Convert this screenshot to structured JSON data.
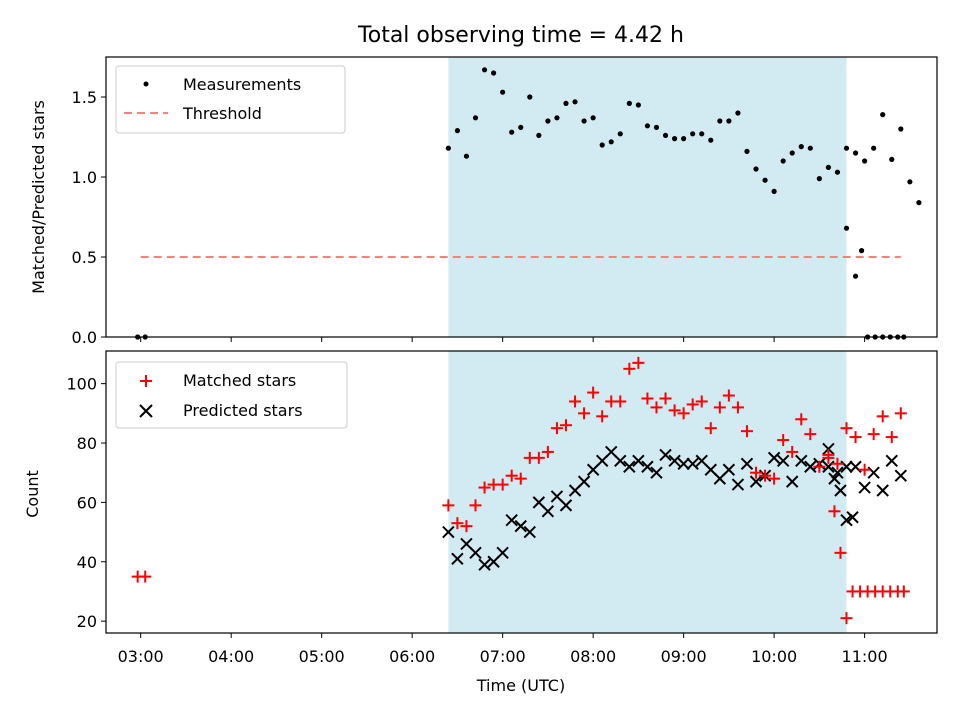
{
  "title": "Total observing time = 4.42 h",
  "top": {
    "ylabel": "Matched/Predicted stars",
    "ylim": [
      0,
      1.75
    ],
    "yticks": [
      "0.0",
      "0.5",
      "1.0",
      "1.5"
    ],
    "legend": {
      "measurements": "Measurements",
      "threshold": "Threshold"
    }
  },
  "bottom": {
    "ylabel": "Count",
    "ylim": [
      16,
      111
    ],
    "yticks": [
      "20",
      "40",
      "60",
      "80",
      "100"
    ],
    "legend": {
      "matched": "Matched stars",
      "predicted": "Predicted stars"
    }
  },
  "xlabel": "Time (UTC)",
  "xticks": [
    "03:00",
    "04:00",
    "05:00",
    "06:00",
    "07:00",
    "08:00",
    "09:00",
    "10:00",
    "11:00"
  ],
  "colors": {
    "shade": "#add8e6",
    "threshold": "#ff7f7f",
    "matched": "#ff0000",
    "predicted": "#000000"
  },
  "chart_data": [
    {
      "type": "scatter",
      "title": "Total observing time = 4.42 h",
      "ylabel": "Matched/Predicted stars",
      "xlim": [
        "02:37",
        "11:48"
      ],
      "ylim": [
        0,
        1.75
      ],
      "shaded_span": [
        "06:24",
        "10:48"
      ],
      "threshold": {
        "name": "Threshold",
        "y": 0.5,
        "x": [
          "03:00",
          "11:24"
        ]
      },
      "series": [
        {
          "name": "Measurements",
          "points": [
            [
              "02:58",
              0.0
            ],
            [
              "03:03",
              0.0
            ],
            [
              "06:24",
              1.18
            ],
            [
              "06:30",
              1.29
            ],
            [
              "06:36",
              1.13
            ],
            [
              "06:42",
              1.37
            ],
            [
              "06:48",
              1.67
            ],
            [
              "06:54",
              1.65
            ],
            [
              "07:00",
              1.53
            ],
            [
              "07:06",
              1.28
            ],
            [
              "07:12",
              1.31
            ],
            [
              "07:18",
              1.5
            ],
            [
              "07:24",
              1.26
            ],
            [
              "07:30",
              1.35
            ],
            [
              "07:36",
              1.37
            ],
            [
              "07:42",
              1.46
            ],
            [
              "07:48",
              1.47
            ],
            [
              "07:54",
              1.35
            ],
            [
              "08:00",
              1.37
            ],
            [
              "08:06",
              1.2
            ],
            [
              "08:12",
              1.22
            ],
            [
              "08:18",
              1.27
            ],
            [
              "08:24",
              1.46
            ],
            [
              "08:30",
              1.45
            ],
            [
              "08:36",
              1.32
            ],
            [
              "08:42",
              1.31
            ],
            [
              "08:48",
              1.26
            ],
            [
              "08:54",
              1.24
            ],
            [
              "09:00",
              1.24
            ],
            [
              "09:06",
              1.27
            ],
            [
              "09:12",
              1.27
            ],
            [
              "09:18",
              1.23
            ],
            [
              "09:24",
              1.35
            ],
            [
              "09:30",
              1.35
            ],
            [
              "09:36",
              1.4
            ],
            [
              "09:42",
              1.16
            ],
            [
              "09:48",
              1.05
            ],
            [
              "09:54",
              0.98
            ],
            [
              "10:00",
              0.91
            ],
            [
              "10:06",
              1.1
            ],
            [
              "10:12",
              1.15
            ],
            [
              "10:18",
              1.19
            ],
            [
              "10:24",
              1.18
            ],
            [
              "10:30",
              0.99
            ],
            [
              "10:36",
              1.06
            ],
            [
              "10:42",
              1.03
            ],
            [
              "10:48",
              1.18
            ],
            [
              "10:54",
              1.15
            ],
            [
              "11:00",
              1.1
            ],
            [
              "11:06",
              1.18
            ],
            [
              "11:12",
              1.39
            ],
            [
              "11:18",
              1.11
            ],
            [
              "11:24",
              1.3
            ],
            [
              "11:30",
              0.97
            ],
            [
              "11:36",
              0.84
            ],
            [
              "10:48",
              0.68
            ],
            [
              "10:54",
              0.38
            ],
            [
              "10:58",
              0.54
            ],
            [
              "11:02",
              0.0
            ],
            [
              "11:07",
              0.0
            ],
            [
              "11:12",
              0.0
            ],
            [
              "11:17",
              0.0
            ],
            [
              "11:22",
              0.0
            ],
            [
              "11:26",
              0.0
            ]
          ]
        }
      ]
    },
    {
      "type": "scatter",
      "xlabel": "Time (UTC)",
      "ylabel": "Count",
      "xlim": [
        "02:37",
        "11:48"
      ],
      "ylim": [
        16,
        111
      ],
      "shaded_span": [
        "06:24",
        "10:48"
      ],
      "series": [
        {
          "name": "Matched stars",
          "marker": "plus",
          "points": [
            [
              "02:58",
              35
            ],
            [
              "03:03",
              35
            ],
            [
              "06:24",
              59
            ],
            [
              "06:30",
              53
            ],
            [
              "06:36",
              52
            ],
            [
              "06:42",
              59
            ],
            [
              "06:48",
              65
            ],
            [
              "06:54",
              66
            ],
            [
              "07:00",
              66
            ],
            [
              "07:06",
              69
            ],
            [
              "07:12",
              68
            ],
            [
              "07:18",
              75
            ],
            [
              "07:24",
              75
            ],
            [
              "07:30",
              77
            ],
            [
              "07:36",
              85
            ],
            [
              "07:42",
              86
            ],
            [
              "07:48",
              94
            ],
            [
              "07:54",
              90
            ],
            [
              "08:00",
              97
            ],
            [
              "08:06",
              89
            ],
            [
              "08:12",
              94
            ],
            [
              "08:18",
              94
            ],
            [
              "08:24",
              105
            ],
            [
              "08:30",
              107
            ],
            [
              "08:36",
              95
            ],
            [
              "08:42",
              92
            ],
            [
              "08:48",
              95
            ],
            [
              "08:54",
              91
            ],
            [
              "09:00",
              90
            ],
            [
              "09:06",
              93
            ],
            [
              "09:12",
              94
            ],
            [
              "09:18",
              85
            ],
            [
              "09:24",
              92
            ],
            [
              "09:30",
              96
            ],
            [
              "09:36",
              92
            ],
            [
              "09:42",
              84
            ],
            [
              "09:48",
              70
            ],
            [
              "09:54",
              69
            ],
            [
              "10:00",
              68
            ],
            [
              "10:06",
              81
            ],
            [
              "10:12",
              77
            ],
            [
              "10:18",
              88
            ],
            [
              "10:24",
              83
            ],
            [
              "10:30",
              72
            ],
            [
              "10:36",
              75
            ],
            [
              "10:42",
              73
            ],
            [
              "10:48",
              85
            ],
            [
              "10:54",
              82
            ],
            [
              "11:00",
              71
            ],
            [
              "11:06",
              83
            ],
            [
              "11:12",
              89
            ],
            [
              "11:18",
              82
            ],
            [
              "11:24",
              90
            ],
            [
              "10:36",
              76
            ],
            [
              "10:40",
              57
            ],
            [
              "10:44",
              43
            ],
            [
              "10:48",
              21
            ],
            [
              "10:52",
              30
            ],
            [
              "10:57",
              30
            ],
            [
              "11:02",
              30
            ],
            [
              "11:07",
              30
            ],
            [
              "11:12",
              30
            ],
            [
              "11:17",
              30
            ],
            [
              "11:22",
              30
            ],
            [
              "11:26",
              30
            ]
          ]
        },
        {
          "name": "Predicted stars",
          "marker": "x",
          "points": [
            [
              "06:24",
              50
            ],
            [
              "06:30",
              41
            ],
            [
              "06:36",
              46
            ],
            [
              "06:42",
              43
            ],
            [
              "06:48",
              39
            ],
            [
              "06:54",
              40
            ],
            [
              "07:00",
              43
            ],
            [
              "07:06",
              54
            ],
            [
              "07:12",
              52
            ],
            [
              "07:18",
              50
            ],
            [
              "07:24",
              60
            ],
            [
              "07:30",
              57
            ],
            [
              "07:36",
              62
            ],
            [
              "07:42",
              59
            ],
            [
              "07:48",
              64
            ],
            [
              "07:54",
              67
            ],
            [
              "08:00",
              71
            ],
            [
              "08:06",
              74
            ],
            [
              "08:12",
              77
            ],
            [
              "08:18",
              74
            ],
            [
              "08:24",
              72
            ],
            [
              "08:30",
              74
            ],
            [
              "08:36",
              72
            ],
            [
              "08:42",
              70
            ],
            [
              "08:48",
              76
            ],
            [
              "08:54",
              74
            ],
            [
              "09:00",
              73
            ],
            [
              "09:06",
              73
            ],
            [
              "09:12",
              74
            ],
            [
              "09:18",
              71
            ],
            [
              "09:24",
              68
            ],
            [
              "09:30",
              71
            ],
            [
              "09:36",
              66
            ],
            [
              "09:42",
              73
            ],
            [
              "09:48",
              67
            ],
            [
              "09:54",
              69
            ],
            [
              "10:00",
              75
            ],
            [
              "10:06",
              74
            ],
            [
              "10:12",
              67
            ],
            [
              "10:18",
              74
            ],
            [
              "10:24",
              72
            ],
            [
              "10:30",
              73
            ],
            [
              "10:36",
              72
            ],
            [
              "10:42",
              70
            ],
            [
              "10:48",
              72
            ],
            [
              "10:54",
              72
            ],
            [
              "11:00",
              65
            ],
            [
              "11:06",
              70
            ],
            [
              "11:12",
              64
            ],
            [
              "11:18",
              74
            ],
            [
              "11:24",
              69
            ],
            [
              "10:36",
              78
            ],
            [
              "10:40",
              68
            ],
            [
              "10:44",
              64
            ],
            [
              "10:48",
              54
            ],
            [
              "10:52",
              55
            ]
          ]
        }
      ]
    }
  ]
}
